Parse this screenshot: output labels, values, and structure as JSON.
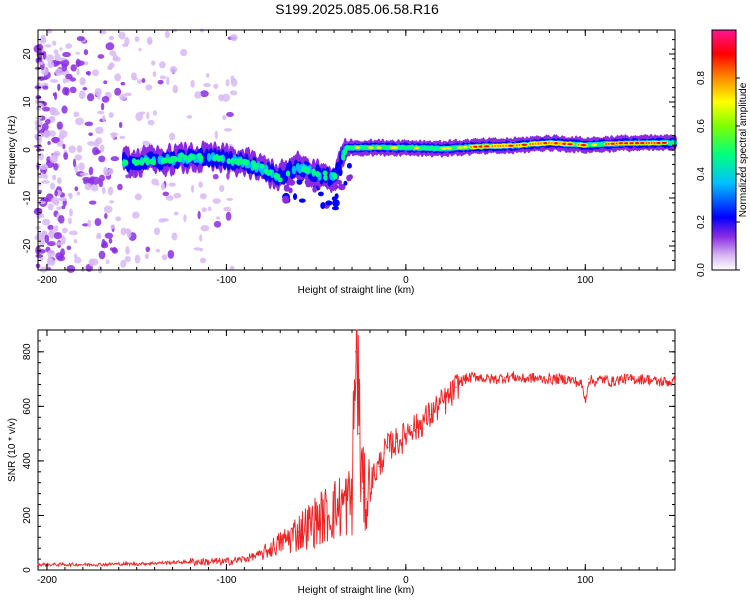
{
  "title": "S199.2025.085.06.58.R16",
  "colorbar_ticks": [
    "0.0",
    "0.2",
    "0.4",
    "0.6",
    "0.8"
  ],
  "chart_data": [
    {
      "type": "heatmap",
      "name": "spectrogram",
      "xlabel": "Height of straight line (km)",
      "ylabel": "Frequency (Hz)",
      "colorbar_label": "Normalized spectral amplitude",
      "xlim": [
        -205,
        150
      ],
      "ylim": [
        -25,
        25
      ],
      "clim": [
        0,
        1
      ],
      "xticks": [
        -200,
        -100,
        0,
        100
      ],
      "yticks": [
        -20,
        -10,
        0,
        10,
        20
      ],
      "colormap": [
        "#ffffff",
        "#d8b8f4",
        "#8a2be2",
        "#0000ff",
        "#00bfff",
        "#00ff7f",
        "#ffff00",
        "#ff8c00",
        "#ff0000",
        "#ff1493"
      ],
      "ridge": [
        {
          "x": -155,
          "f": -2.5
        },
        {
          "x": -140,
          "f": -2.3
        },
        {
          "x": -125,
          "f": -1.8
        },
        {
          "x": -110,
          "f": -1.5
        },
        {
          "x": -100,
          "f": -2.0
        },
        {
          "x": -90,
          "f": -2.6
        },
        {
          "x": -80,
          "f": -4.0
        },
        {
          "x": -70,
          "f": -5.5
        },
        {
          "x": -60,
          "f": -3.5
        },
        {
          "x": -50,
          "f": -5.0
        },
        {
          "x": -40,
          "f": -6.0
        },
        {
          "x": -33,
          "f": 0.5
        },
        {
          "x": -20,
          "f": 0.5
        },
        {
          "x": 0,
          "f": 0.5
        },
        {
          "x": 20,
          "f": 0.3
        },
        {
          "x": 40,
          "f": 0.7
        },
        {
          "x": 60,
          "f": 0.9
        },
        {
          "x": 80,
          "f": 1.5
        },
        {
          "x": 100,
          "f": 1.0
        },
        {
          "x": 120,
          "f": 1.4
        },
        {
          "x": 150,
          "f": 1.5
        }
      ]
    },
    {
      "type": "line",
      "name": "snr",
      "xlabel": "Height of straight line (km)",
      "ylabel": "SNR (10 * v/v)",
      "xlim": [
        -205,
        150
      ],
      "ylim": [
        0,
        880
      ],
      "xticks": [
        -200,
        -100,
        0,
        100
      ],
      "yticks": [
        0,
        200,
        400,
        600,
        800
      ],
      "color": "#ee2222",
      "grid": false,
      "x": [
        -205,
        -190,
        -175,
        -160,
        -150,
        -140,
        -130,
        -120,
        -110,
        -100,
        -90,
        -80,
        -75,
        -70,
        -65,
        -60,
        -55,
        -50,
        -45,
        -40,
        -35,
        -30,
        -28,
        -27,
        -26,
        -24,
        -22,
        -20,
        -18,
        -15,
        -12,
        -10,
        -8,
        -5,
        -2,
        0,
        3,
        6,
        10,
        14,
        18,
        22,
        25,
        28,
        30,
        33,
        36,
        40,
        45,
        50,
        55,
        60,
        65,
        70,
        75,
        80,
        85,
        90,
        95,
        98,
        100,
        102,
        105,
        110,
        115,
        120,
        125,
        130,
        135,
        140,
        145,
        150
      ],
      "y": [
        20,
        20,
        20,
        22,
        22,
        25,
        28,
        30,
        30,
        30,
        40,
        60,
        80,
        100,
        120,
        140,
        160,
        180,
        200,
        220,
        240,
        260,
        800,
        880,
        500,
        300,
        260,
        300,
        350,
        380,
        430,
        450,
        460,
        470,
        480,
        500,
        530,
        520,
        550,
        570,
        600,
        620,
        640,
        670,
        690,
        700,
        705,
        710,
        700,
        700,
        705,
        710,
        700,
        705,
        700,
        700,
        700,
        700,
        690,
        680,
        620,
        700,
        690,
        700,
        690,
        700,
        700,
        700,
        700,
        690,
        690,
        690
      ]
    }
  ]
}
